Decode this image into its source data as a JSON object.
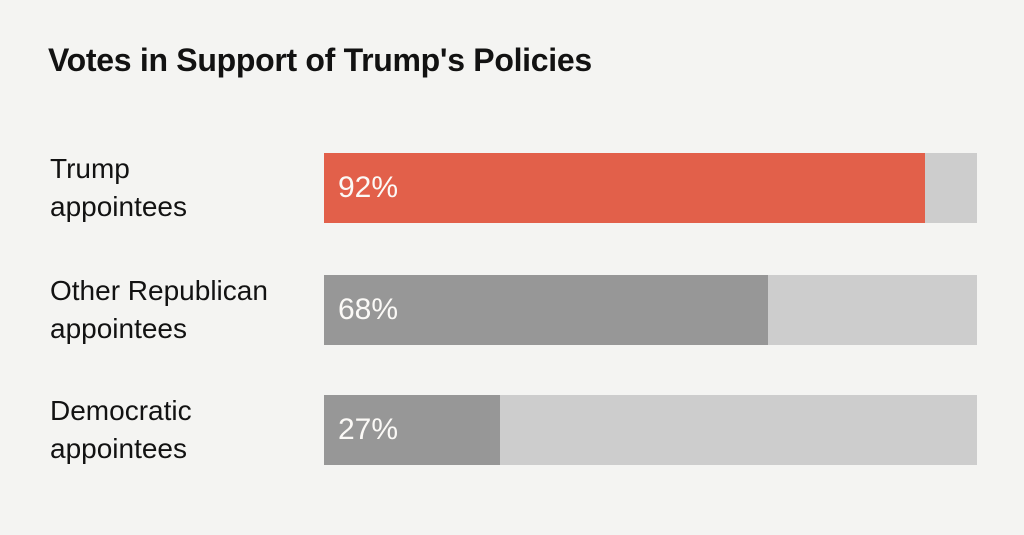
{
  "title": "Votes in Support of Trump's Policies",
  "colors": {
    "background": "#f4f4f2",
    "track": "#cdcdcd",
    "text": "#121212",
    "value_text": "#fbf9f6",
    "highlight_red": "#e2604a",
    "neutral_gray": "#979797"
  },
  "chart_data": {
    "type": "bar",
    "orientation": "horizontal",
    "title": "Votes in Support of Trump's Policies",
    "categories": [
      "Trump appointees",
      "Other Republican appointees",
      "Democratic appointees"
    ],
    "values": [
      92,
      68,
      27
    ],
    "value_labels": [
      "92%",
      "68%",
      "27%"
    ],
    "bar_colors": [
      "#e2604a",
      "#979797",
      "#979797"
    ],
    "xlim": [
      0,
      100
    ],
    "grid": false,
    "legend": false
  },
  "rows": [
    {
      "label_lines": [
        "Trump",
        "appointees"
      ],
      "value_label": "92%"
    },
    {
      "label_lines": [
        "Other Republican",
        "appointees"
      ],
      "value_label": "68%"
    },
    {
      "label_lines": [
        "Democratic",
        "appointees"
      ],
      "value_label": "27%"
    }
  ]
}
